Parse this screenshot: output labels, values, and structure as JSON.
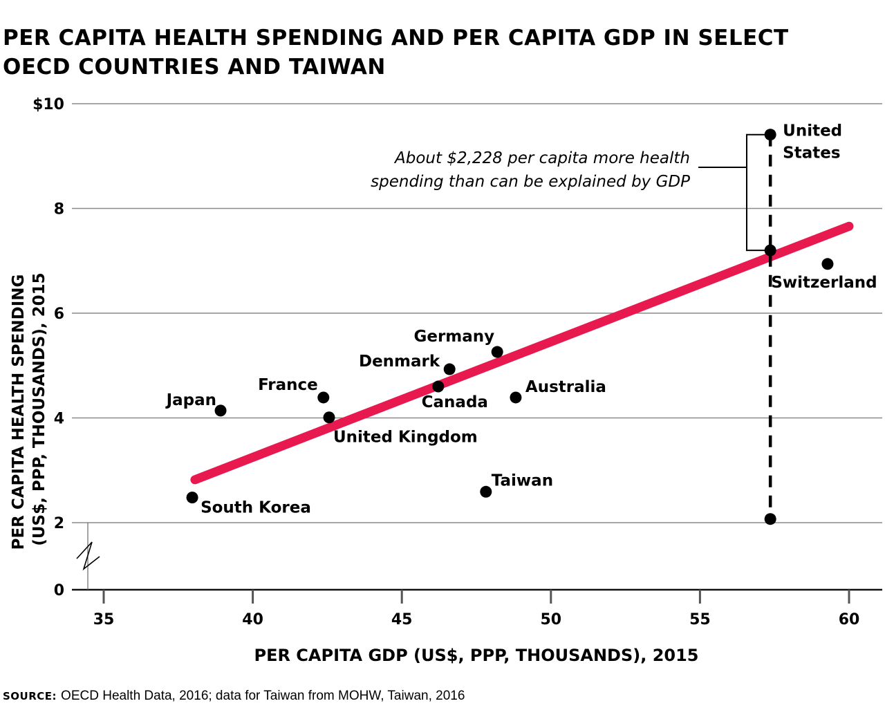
{
  "chart_data": {
    "type": "scatter",
    "title": "PER CAPITA HEALTH SPENDING AND PER CAPITA GDP IN SELECT OECD COUNTRIES AND TAIWAN",
    "title_lines": [
      "PER CAPITA HEALTH SPENDING AND PER CAPITA GDP IN SELECT",
      "OECD COUNTRIES AND TAIWAN"
    ],
    "xlabel": "PER CAPITA GDP (US$, PPP, THOUSANDS), 2015",
    "ylabel": "PER CAPITA HEALTH SPENDING (US$, PPP, THOUSANDS), 2015",
    "ylabel_lines": [
      "PER CAPITA HEALTH SPENDING",
      "(US$, PPP, THOUSANDS), 2015"
    ],
    "xlim": [
      34.5,
      61
    ],
    "ylim": [
      0,
      10
    ],
    "y_axis_break": [
      0,
      2
    ],
    "xticks": [
      35,
      40,
      45,
      50,
      55,
      60
    ],
    "xtick_labels": [
      "35",
      "40",
      "45",
      "50",
      "55",
      "60"
    ],
    "yticks": [
      0,
      2,
      4,
      6,
      8,
      10
    ],
    "ytick_labels": [
      "0",
      "2",
      "4",
      "6",
      "8",
      "$10"
    ],
    "grid": "horizontal",
    "points": [
      {
        "name": "South Korea",
        "x": 37.97,
        "y": 2.48,
        "label_pos": "below-right"
      },
      {
        "name": "Japan",
        "x": 38.92,
        "y": 4.14,
        "label_pos": "above-left"
      },
      {
        "name": "France",
        "x": 42.37,
        "y": 4.39,
        "label_pos": "above-left"
      },
      {
        "name": "United Kingdom",
        "x": 42.56,
        "y": 4.01,
        "label_pos": "below-right"
      },
      {
        "name": "Canada",
        "x": 46.22,
        "y": 4.6,
        "label_pos": "below"
      },
      {
        "name": "Denmark",
        "x": 46.6,
        "y": 4.93,
        "label_pos": "left"
      },
      {
        "name": "Germany",
        "x": 48.2,
        "y": 5.26,
        "label_pos": "above-left"
      },
      {
        "name": "Australia",
        "x": 48.82,
        "y": 4.39,
        "label_pos": "right"
      },
      {
        "name": "Taiwan",
        "x": 47.82,
        "y": 2.59,
        "label_pos": "above-right"
      },
      {
        "name": "Switzerland",
        "x": 59.28,
        "y": 6.94,
        "label_pos": "below"
      },
      {
        "name": "United States",
        "x": 57.36,
        "y": 9.41,
        "label_pos": "right",
        "label_lines": [
          "United",
          "States"
        ]
      }
    ],
    "regression_line": {
      "x": [
        38.06,
        60.0
      ],
      "y": [
        2.82,
        7.66
      ],
      "color": "#E8194F"
    },
    "us_predicted": {
      "x": 57.36,
      "y": 7.2
    },
    "us_dashed_line": {
      "x": 57.36,
      "y_from": 2.07,
      "y_to": 9.41
    },
    "annotation": {
      "lines": [
        "About $2,228 per capita more health",
        "spending than can be explained by GDP"
      ],
      "text": "About $2,228 per capita more health spending than can be explained by GDP"
    }
  },
  "source": {
    "label": "SOURCE:",
    "text": "OECD Health Data, 2016; data for Taiwan from MOHW, Taiwan, 2016"
  },
  "colors": {
    "regression": "#E8194F",
    "points": "#000000",
    "grid": "#8a8a8a",
    "axis": "#111111"
  }
}
